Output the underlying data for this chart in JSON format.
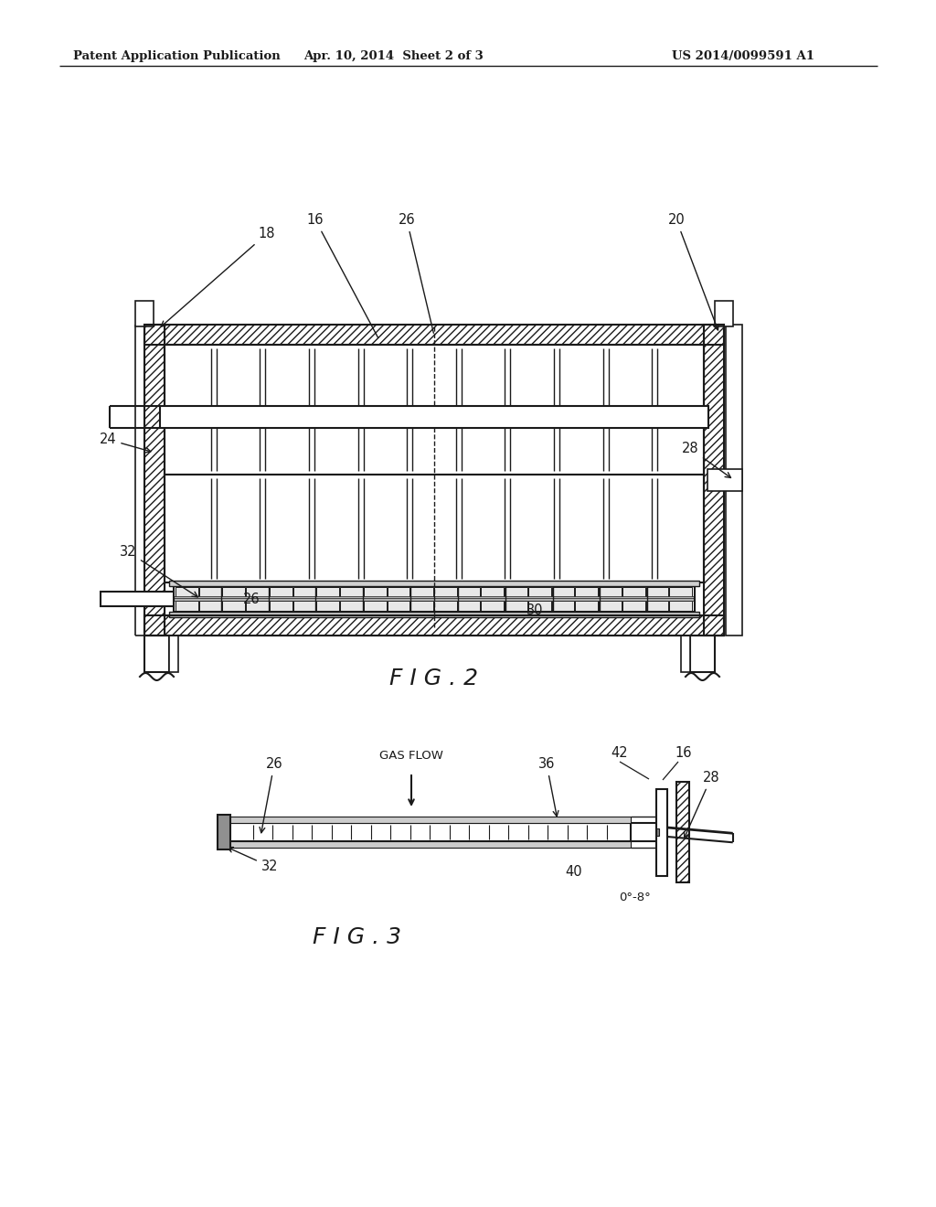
{
  "bg_color": "#ffffff",
  "line_color": "#1a1a1a",
  "header_text_left": "Patent Application Publication",
  "header_text_mid": "Apr. 10, 2014  Sheet 2 of 3",
  "header_text_right": "US 2014/0099591 A1",
  "fig2_label": "F I G . 2",
  "fig3_label": "F I G . 3"
}
